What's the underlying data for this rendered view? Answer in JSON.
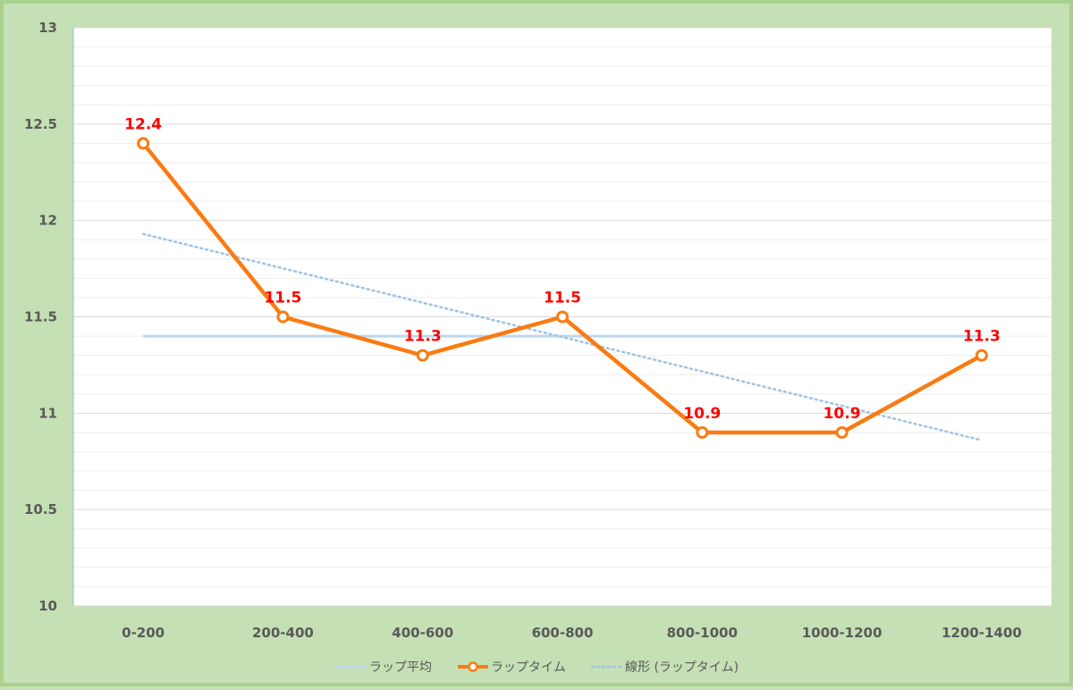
{
  "chart_data": {
    "type": "line",
    "categories": [
      "0-200",
      "200-400",
      "400-600",
      "600-800",
      "800-1000",
      "1000-1200",
      "1200-1400"
    ],
    "series": [
      {
        "name": "ラップ平均",
        "values": [
          11.4,
          11.4,
          11.4,
          11.4,
          11.4,
          11.4,
          11.4
        ],
        "color": "#bdd7ee",
        "style": "solid"
      },
      {
        "name": "ラップタイム",
        "values": [
          12.4,
          11.5,
          11.3,
          11.5,
          10.9,
          10.9,
          11.3
        ],
        "color": "#f97b12",
        "style": "solid-markers",
        "data_labels": [
          "12.4",
          "11.5",
          "11.3",
          "11.5",
          "10.9",
          "10.9",
          "11.3"
        ]
      },
      {
        "name": "線形 (ラップタイム)",
        "values": [
          11.93,
          11.75,
          11.57,
          11.39,
          11.22,
          11.04,
          10.86
        ],
        "color": "#9dc3e6",
        "style": "dotted"
      }
    ],
    "ylim": [
      10,
      13
    ],
    "yticks": [
      "10",
      "10.5",
      "11",
      "11.5",
      "12",
      "12.5",
      "13"
    ],
    "grid": true,
    "legend": "bottom",
    "colors": {
      "background": "#c5e0b4",
      "border": "#a9d18e",
      "plot": "#ffffff",
      "label": "#ff0000"
    }
  }
}
